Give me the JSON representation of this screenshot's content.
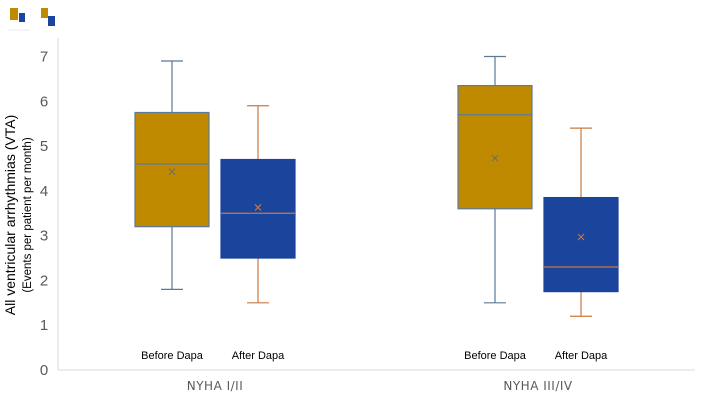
{
  "chart_data": {
    "type": "box",
    "ylabel": "All ventricular arrhythmias (VTA)",
    "ylabel_sub": "(Events per patient per month)",
    "ylim": [
      0,
      7
    ],
    "yticks": [
      0,
      1,
      2,
      3,
      4,
      5,
      6,
      7
    ],
    "grid": false,
    "categories": [
      "NYHA I/II",
      "NYHA III/IV"
    ],
    "series": [
      {
        "name": "Before Dapa",
        "color": "#C08A00",
        "box_border": "#5B7A99",
        "median_color": "#5B7A99",
        "whisker_color": "#5B7A99",
        "mean_marker_color": "#6E6E6E",
        "boxes": [
          {
            "min": 1.8,
            "q1": 3.2,
            "median": 4.6,
            "q3": 5.75,
            "max": 6.9,
            "mean": 4.43
          },
          {
            "min": 1.5,
            "q1": 3.6,
            "median": 5.7,
            "q3": 6.35,
            "max": 7.0,
            "mean": 4.73
          }
        ]
      },
      {
        "name": "After Dapa",
        "color": "#1B449C",
        "box_border": "#1B449C",
        "median_color": "#C87941",
        "whisker_color": "#C87941",
        "mean_marker_color": "#C87941",
        "boxes": [
          {
            "min": 1.5,
            "q1": 2.5,
            "median": 3.5,
            "q3": 4.7,
            "max": 5.9,
            "mean": 3.63
          },
          {
            "min": 1.2,
            "q1": 1.75,
            "median": 2.3,
            "q3": 3.85,
            "max": 5.4,
            "mean": 2.97
          }
        ]
      }
    ]
  }
}
